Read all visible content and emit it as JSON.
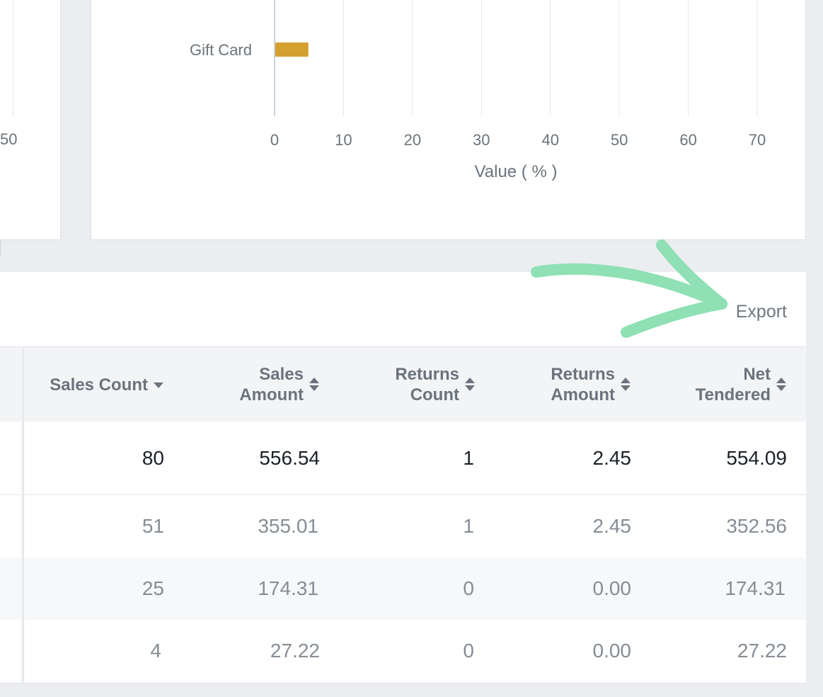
{
  "left_card": {
    "tick_label": "50"
  },
  "chart_data": {
    "type": "bar",
    "orientation": "horizontal",
    "categories": [
      "Gift Card"
    ],
    "values": [
      4.8
    ],
    "xlabel": "Value ( % )",
    "xlim": [
      0,
      70
    ],
    "xticks": [
      0,
      10,
      20,
      30,
      40,
      50,
      60,
      70
    ],
    "grid": true,
    "bar_color": "#d4a02f"
  },
  "toolbar": {
    "export_label": "Export"
  },
  "annotation": {
    "arrow_color": "#8fe0b4"
  },
  "table": {
    "columns": [
      {
        "line1": "Sales Count",
        "line2": "",
        "sort": "desc"
      },
      {
        "line1": "Sales",
        "line2": "Amount",
        "sort": "both"
      },
      {
        "line1": "Returns",
        "line2": "Count",
        "sort": "both"
      },
      {
        "line1": "Returns",
        "line2": "Amount",
        "sort": "both"
      },
      {
        "line1": "Net",
        "line2": "Tendered",
        "sort": "both"
      }
    ],
    "total": [
      "80",
      "556.54",
      "1",
      "2.45",
      "554.09"
    ],
    "rows": [
      [
        "51",
        "355.01",
        "1",
        "2.45",
        "352.56"
      ],
      [
        "25",
        "174.31",
        "0",
        "0.00",
        "174.31"
      ],
      [
        "4",
        "27.22",
        "0",
        "0.00",
        "27.22"
      ]
    ]
  }
}
